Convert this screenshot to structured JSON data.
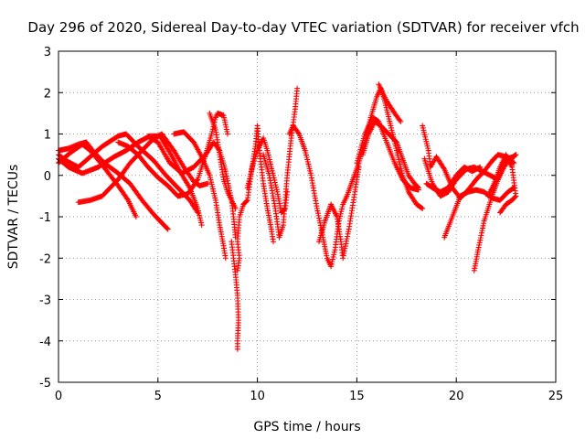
{
  "chart_data": {
    "type": "scatter",
    "title": "Day 296 of 2020, Sidereal Day-to-day VTEC variation (SDTVAR) for receiver vfch",
    "xlabel": "GPS time / hours",
    "ylabel": "SDTVAR / TECUs",
    "xlim": [
      0,
      25
    ],
    "ylim": [
      -5,
      3
    ],
    "xticks": [
      0,
      5,
      10,
      15,
      20,
      25
    ],
    "yticks": [
      -5,
      -4,
      -3,
      -2,
      -1,
      0,
      1,
      2,
      3
    ],
    "grid": true,
    "marker": "+",
    "series": [
      {
        "name": "SDTVAR",
        "color": "#ff0000",
        "tracks": [
          [
            [
              0.0,
              0.6
            ],
            [
              0.5,
              0.65
            ],
            [
              1.0,
              0.75
            ],
            [
              1.4,
              0.8
            ],
            [
              1.8,
              0.55
            ],
            [
              2.3,
              0.3
            ],
            [
              3.0,
              0.05
            ],
            [
              3.6,
              -0.2
            ],
            [
              4.2,
              -0.6
            ],
            [
              4.8,
              -0.95
            ],
            [
              5.3,
              -1.2
            ],
            [
              5.5,
              -1.3
            ]
          ],
          [
            [
              0.0,
              0.3
            ],
            [
              0.6,
              0.55
            ],
            [
              1.2,
              0.75
            ],
            [
              1.6,
              0.6
            ],
            [
              2.2,
              0.25
            ],
            [
              3.0,
              -0.25
            ],
            [
              3.5,
              -0.6
            ],
            [
              3.9,
              -1.0
            ]
          ],
          [
            [
              0.0,
              0.4
            ],
            [
              0.5,
              0.2
            ],
            [
              1.2,
              0.05
            ],
            [
              2.0,
              0.2
            ],
            [
              2.8,
              0.45
            ],
            [
              3.4,
              0.6
            ],
            [
              4.0,
              0.8
            ],
            [
              4.6,
              0.95
            ],
            [
              5.1,
              0.95
            ],
            [
              5.6,
              0.55
            ],
            [
              6.1,
              0.1
            ],
            [
              6.6,
              -0.3
            ],
            [
              7.0,
              -0.8
            ],
            [
              7.2,
              -1.2
            ]
          ],
          [
            [
              0.0,
              0.5
            ],
            [
              0.4,
              0.35
            ],
            [
              1.0,
              0.2
            ],
            [
              2.2,
              0.7
            ],
            [
              3.0,
              0.95
            ],
            [
              3.4,
              1.0
            ],
            [
              4.0,
              0.7
            ],
            [
              4.8,
              0.35
            ],
            [
              5.4,
              0.0
            ],
            [
              6.0,
              -0.3
            ],
            [
              6.6,
              -0.6
            ],
            [
              7.0,
              -0.9
            ]
          ],
          [
            [
              1.0,
              -0.65
            ],
            [
              1.6,
              -0.6
            ],
            [
              2.2,
              -0.5
            ],
            [
              3.0,
              -0.1
            ],
            [
              3.6,
              0.3
            ],
            [
              4.2,
              0.6
            ],
            [
              4.8,
              0.9
            ],
            [
              5.2,
              1.0
            ],
            [
              5.8,
              0.6
            ],
            [
              6.3,
              0.2
            ],
            [
              6.8,
              -0.15
            ],
            [
              7.1,
              -0.25
            ],
            [
              7.5,
              -0.2
            ]
          ],
          [
            [
              3.0,
              0.8
            ],
            [
              3.5,
              0.7
            ],
            [
              4.0,
              0.5
            ],
            [
              4.5,
              0.2
            ],
            [
              5.0,
              -0.05
            ],
            [
              5.5,
              -0.25
            ],
            [
              6.0,
              -0.5
            ],
            [
              6.5,
              -0.45
            ],
            [
              7.0,
              -0.1
            ],
            [
              7.4,
              0.5
            ],
            [
              7.7,
              1.0
            ],
            [
              7.9,
              1.4
            ],
            [
              8.0,
              1.5
            ],
            [
              8.3,
              1.45
            ],
            [
              8.5,
              1.0
            ]
          ],
          [
            [
              4.5,
              0.95
            ],
            [
              5.0,
              0.8
            ],
            [
              5.6,
              0.3
            ],
            [
              6.2,
              0.05
            ],
            [
              6.8,
              0.2
            ],
            [
              7.4,
              0.5
            ],
            [
              7.8,
              0.8
            ],
            [
              8.1,
              0.6
            ],
            [
              8.4,
              0.1
            ],
            [
              8.7,
              -0.6
            ],
            [
              8.8,
              -1.0
            ],
            [
              8.9,
              -1.5
            ]
          ],
          [
            [
              5.8,
              1.0
            ],
            [
              6.3,
              1.05
            ],
            [
              6.8,
              0.8
            ],
            [
              7.2,
              0.45
            ],
            [
              7.6,
              0.0
            ],
            [
              7.9,
              -0.6
            ],
            [
              8.1,
              -1.2
            ],
            [
              8.3,
              -1.7
            ],
            [
              8.4,
              -2.0
            ]
          ],
          [
            [
              7.6,
              1.5
            ],
            [
              7.9,
              1.1
            ],
            [
              8.1,
              0.5
            ],
            [
              8.3,
              -0.1
            ],
            [
              8.5,
              -0.4
            ],
            [
              8.7,
              -0.6
            ],
            [
              8.9,
              -0.8
            ]
          ],
          [
            [
              8.7,
              -1.6
            ],
            [
              8.8,
              -2.0
            ],
            [
              8.9,
              -2.4
            ],
            [
              9.0,
              -2.9
            ],
            [
              9.05,
              -3.5
            ],
            [
              9.0,
              -4.0
            ],
            [
              9.0,
              -4.2
            ]
          ],
          [
            [
              9.0,
              -2.3
            ],
            [
              9.1,
              -2.0
            ],
            [
              9.0,
              -1.6
            ],
            [
              9.1,
              -1.0
            ],
            [
              9.3,
              -0.7
            ],
            [
              9.5,
              -0.6
            ],
            [
              9.7,
              0.1
            ],
            [
              9.9,
              0.7
            ],
            [
              10.0,
              1.2
            ],
            [
              10.1,
              0.6
            ],
            [
              10.3,
              -0.2
            ],
            [
              10.5,
              -0.8
            ],
            [
              10.7,
              -1.3
            ],
            [
              10.8,
              -1.6
            ]
          ],
          [
            [
              9.5,
              -0.3
            ],
            [
              9.8,
              0.3
            ],
            [
              10.0,
              0.6
            ],
            [
              10.3,
              0.9
            ],
            [
              10.5,
              0.6
            ],
            [
              10.8,
              0.0
            ],
            [
              11.0,
              -0.4
            ],
            [
              11.2,
              -0.9
            ],
            [
              11.4,
              -0.8
            ],
            [
              11.5,
              -0.4
            ]
          ],
          [
            [
              10.3,
              0.5
            ],
            [
              10.6,
              0.0
            ],
            [
              10.9,
              -0.8
            ],
            [
              11.1,
              -1.5
            ],
            [
              11.3,
              -1.2
            ],
            [
              11.5,
              0.0
            ],
            [
              11.7,
              0.9
            ],
            [
              11.9,
              1.6
            ],
            [
              12.0,
              2.1
            ]
          ],
          [
            [
              11.6,
              1.0
            ],
            [
              11.8,
              1.2
            ],
            [
              12.1,
              1.0
            ],
            [
              12.4,
              0.6
            ],
            [
              12.7,
              0.0
            ],
            [
              13.0,
              -0.8
            ],
            [
              13.3,
              -1.5
            ],
            [
              13.5,
              -2.0
            ],
            [
              13.7,
              -2.2
            ],
            [
              13.9,
              -1.8
            ],
            [
              14.1,
              -1.1
            ],
            [
              14.3,
              -0.7
            ],
            [
              14.5,
              -0.5
            ]
          ],
          [
            [
              13.1,
              -1.6
            ],
            [
              13.4,
              -1.1
            ],
            [
              13.7,
              -0.7
            ],
            [
              14.0,
              -1.0
            ],
            [
              14.2,
              -1.6
            ],
            [
              14.3,
              -2.0
            ],
            [
              14.6,
              -1.3
            ],
            [
              14.9,
              -0.4
            ],
            [
              15.1,
              0.2
            ]
          ],
          [
            [
              14.5,
              -0.5
            ],
            [
              14.8,
              -0.1
            ],
            [
              15.1,
              0.3
            ],
            [
              15.4,
              0.8
            ],
            [
              15.7,
              1.4
            ],
            [
              16.0,
              1.9
            ],
            [
              16.2,
              2.1
            ],
            [
              16.4,
              1.8
            ],
            [
              16.7,
              1.2
            ],
            [
              17.0,
              0.6
            ],
            [
              17.3,
              0.0
            ],
            [
              17.6,
              -0.4
            ],
            [
              18.0,
              -0.7
            ],
            [
              18.3,
              -0.8
            ]
          ],
          [
            [
              15.0,
              0.3
            ],
            [
              15.4,
              1.0
            ],
            [
              15.8,
              1.4
            ],
            [
              16.1,
              1.3
            ],
            [
              16.5,
              0.8
            ],
            [
              16.9,
              0.3
            ],
            [
              17.3,
              -0.1
            ],
            [
              17.7,
              -0.3
            ],
            [
              18.1,
              -0.35
            ]
          ],
          [
            [
              15.3,
              0.5
            ],
            [
              15.6,
              1.0
            ],
            [
              15.9,
              1.3
            ],
            [
              16.2,
              1.2
            ],
            [
              16.6,
              1.0
            ],
            [
              17.0,
              0.8
            ],
            [
              17.3,
              0.4
            ],
            [
              17.6,
              0.0
            ],
            [
              17.9,
              -0.2
            ],
            [
              18.1,
              -0.3
            ]
          ],
          [
            [
              16.1,
              2.2
            ],
            [
              16.5,
              1.8
            ],
            [
              16.9,
              1.5
            ],
            [
              17.2,
              1.3
            ]
          ],
          [
            [
              18.3,
              1.2
            ],
            [
              18.6,
              0.6
            ],
            [
              18.7,
              0.2
            ],
            [
              19.0,
              0.45
            ],
            [
              19.4,
              0.15
            ],
            [
              19.8,
              -0.3
            ],
            [
              20.2,
              -0.55
            ],
            [
              20.6,
              -0.35
            ],
            [
              21.0,
              -0.1
            ],
            [
              21.4,
              0.1
            ],
            [
              21.8,
              0.35
            ],
            [
              22.1,
              0.5
            ],
            [
              22.5,
              0.45
            ],
            [
              22.9,
              0.3
            ]
          ],
          [
            [
              18.5,
              -0.2
            ],
            [
              18.8,
              -0.3
            ],
            [
              19.2,
              -0.4
            ],
            [
              19.6,
              -0.3
            ],
            [
              20.0,
              0.0
            ],
            [
              20.4,
              0.2
            ],
            [
              20.8,
              0.1
            ],
            [
              21.2,
              0.2
            ]
          ],
          [
            [
              18.4,
              0.4
            ],
            [
              18.8,
              -0.2
            ],
            [
              19.2,
              -0.5
            ],
            [
              19.6,
              -0.4
            ],
            [
              20.0,
              -0.1
            ],
            [
              20.5,
              0.15
            ],
            [
              20.9,
              0.2
            ],
            [
              21.3,
              0.1
            ],
            [
              21.7,
              0.0
            ],
            [
              22.1,
              -0.1
            ],
            [
              22.5,
              0.4
            ],
            [
              22.9,
              0.45
            ]
          ],
          [
            [
              19.4,
              -1.5
            ],
            [
              19.8,
              -1.0
            ],
            [
              20.2,
              -0.5
            ],
            [
              20.6,
              -0.4
            ],
            [
              21.0,
              -0.35
            ],
            [
              21.4,
              -0.4
            ],
            [
              21.8,
              -0.55
            ],
            [
              22.2,
              -0.6
            ],
            [
              22.6,
              -0.4
            ],
            [
              22.9,
              -0.3
            ]
          ],
          [
            [
              20.9,
              -2.3
            ],
            [
              21.1,
              -1.8
            ],
            [
              21.4,
              -1.1
            ],
            [
              21.8,
              -0.5
            ],
            [
              22.1,
              -0.1
            ],
            [
              22.4,
              0.2
            ],
            [
              22.7,
              0.4
            ],
            [
              23.0,
              0.5
            ]
          ],
          [
            [
              21.6,
              -0.5
            ],
            [
              21.9,
              -0.2
            ],
            [
              22.2,
              0.2
            ],
            [
              22.5,
              0.5
            ],
            [
              22.8,
              0.2
            ],
            [
              23.0,
              -0.5
            ],
            [
              22.8,
              -0.6
            ],
            [
              22.5,
              -0.7
            ],
            [
              22.2,
              -0.9
            ]
          ]
        ]
      }
    ]
  }
}
